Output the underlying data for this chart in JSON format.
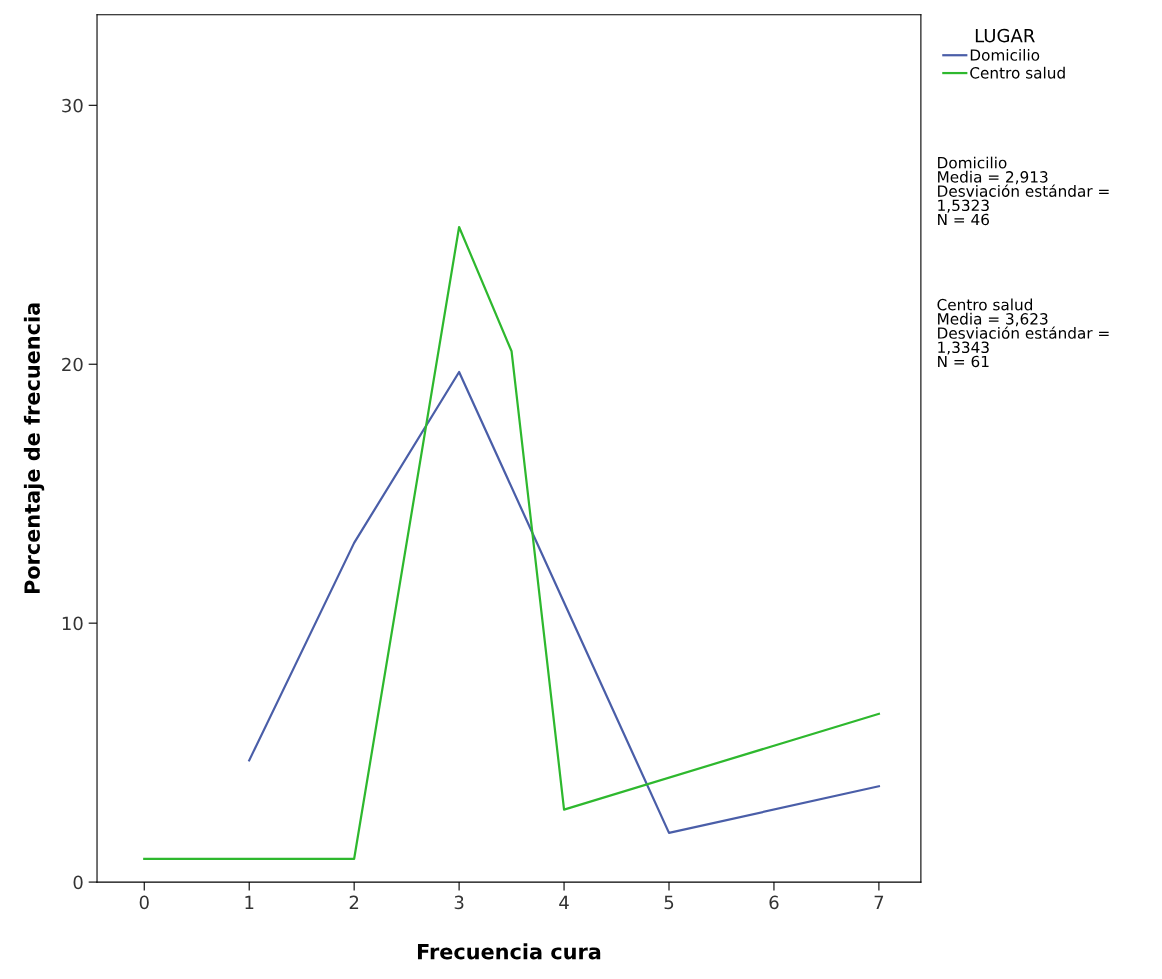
{
  "chart_data": {
    "type": "line",
    "xlabel": "Frecuencia cura",
    "ylabel": "Porcentaje de frecuencia",
    "legend_title": "LUGAR",
    "legend": "top right",
    "grid": false,
    "marker": "none",
    "line_style": "solid",
    "xlim": [
      -0.45,
      7.4
    ],
    "xticks": [
      0,
      1,
      2,
      3,
      4,
      5,
      6,
      7
    ],
    "ylim": [
      0,
      33.5
    ],
    "yticks": [
      0,
      10,
      20,
      30
    ],
    "series": [
      {
        "name": "Domicilio",
        "color": "#4a5ea8",
        "x": [
          1,
          2,
          3,
          4,
          5,
          7
        ],
        "values": [
          4.7,
          13.1,
          19.7,
          10.8,
          1.9,
          3.7
        ]
      },
      {
        "name": "Centro salud",
        "color": "#2eb82e",
        "x": [
          0,
          1,
          2,
          3,
          3.5,
          4,
          7
        ],
        "values": [
          0.9,
          0.9,
          0.9,
          25.3,
          20.5,
          2.8,
          6.5
        ]
      }
    ],
    "annotations": [
      "Domicilio\nMedia = 2,913\nDesviación estándar =\n1,5323\nN = 46",
      "Centro salud\nMedia = 3,623\nDesviación estándar =\n1,3343\nN = 61"
    ]
  }
}
